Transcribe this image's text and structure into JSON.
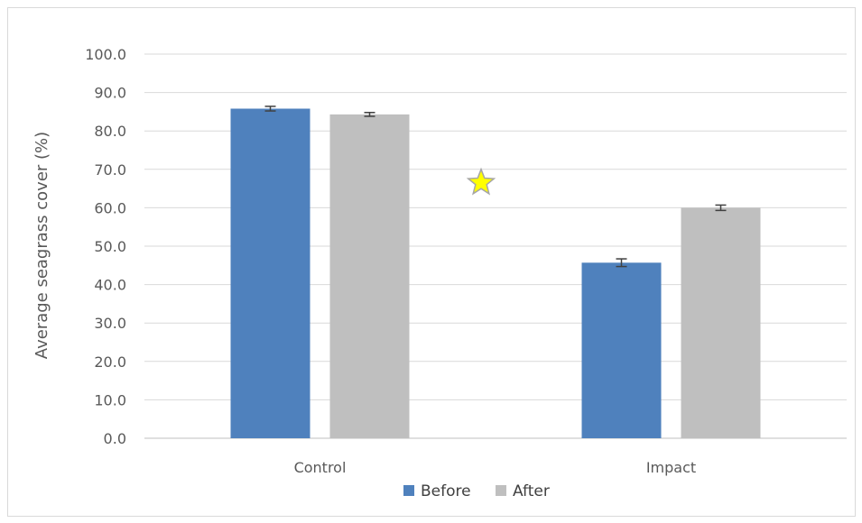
{
  "chart_data": {
    "type": "bar",
    "title": "",
    "xlabel": "",
    "ylabel": "Average seagrass cover (%)",
    "categories": [
      "Control",
      "Impact"
    ],
    "series": [
      {
        "name": "Before",
        "color": "#4f81bd",
        "values": [
          85.8,
          45.7
        ],
        "errors": [
          0.6,
          1.0
        ]
      },
      {
        "name": "After",
        "color": "#bfbfbf",
        "values": [
          84.3,
          60.0
        ],
        "errors": [
          0.5,
          0.7
        ]
      }
    ],
    "ylim": [
      0,
      100
    ],
    "yticks": [
      "0.0",
      "10.0",
      "20.0",
      "30.0",
      "40.0",
      "50.0",
      "60.0",
      "70.0",
      "80.0",
      "90.0",
      "100.0"
    ],
    "grid": true,
    "legend_position": "bottom",
    "annotation": {
      "symbol": "star-icon",
      "color": "#ffff00",
      "x_between": [
        "Control",
        "Impact"
      ],
      "y": 66.5
    }
  }
}
